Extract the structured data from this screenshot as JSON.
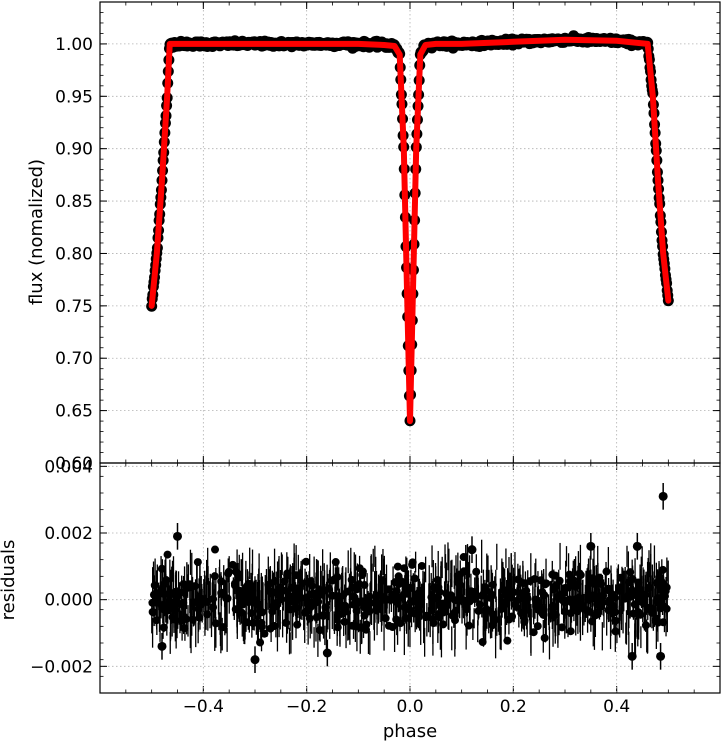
{
  "chart_data": [
    {
      "type": "scatter",
      "panel": "top",
      "title": "",
      "xlabel": "",
      "ylabel": "flux  (nomalized)",
      "xlim": [
        -0.6,
        0.6
      ],
      "ylim": [
        0.6,
        1.04
      ],
      "x_ticks": [
        -0.4,
        -0.2,
        0.0,
        0.2,
        0.4
      ],
      "y_ticks": [
        0.6,
        0.65,
        0.7,
        0.75,
        0.8,
        0.85,
        0.9,
        0.95,
        1.0
      ],
      "y_tick_labels": [
        "0.60",
        "0.65",
        "0.70",
        "0.75",
        "0.80",
        "0.85",
        "0.90",
        "0.95",
        "1.00"
      ],
      "grid": true,
      "series": [
        {
          "role": "observed",
          "marker": "circle",
          "color": "#000000",
          "x": [
            -0.5,
            -0.49,
            -0.48,
            -0.47,
            -0.465,
            -0.45,
            -0.4,
            -0.3,
            -0.2,
            -0.1,
            -0.05,
            -0.03,
            -0.02,
            -0.012,
            -0.006,
            0.0,
            0.006,
            0.012,
            0.02,
            0.03,
            0.05,
            0.1,
            0.2,
            0.3,
            0.4,
            0.46,
            0.47,
            0.48,
            0.49,
            0.5
          ],
          "y": [
            0.75,
            0.8,
            0.87,
            0.95,
            1.0,
            1.0,
            1.0,
            1.0,
            1.0,
            1.0,
            0.999,
            0.998,
            0.99,
            0.9,
            0.77,
            0.64,
            0.77,
            0.9,
            0.99,
            0.999,
            1.0,
            1.0,
            1.002,
            1.004,
            1.003,
            1.0,
            0.95,
            0.87,
            0.8,
            0.755
          ]
        },
        {
          "role": "model",
          "marker": "line",
          "color": "#ff0000",
          "x": [
            -0.5,
            -0.49,
            -0.48,
            -0.47,
            -0.465,
            -0.45,
            -0.4,
            -0.3,
            -0.2,
            -0.1,
            -0.05,
            -0.03,
            -0.02,
            -0.012,
            -0.006,
            0.0,
            0.006,
            0.012,
            0.02,
            0.03,
            0.05,
            0.1,
            0.2,
            0.3,
            0.4,
            0.46,
            0.47,
            0.48,
            0.49,
            0.5
          ],
          "y": [
            0.75,
            0.8,
            0.87,
            0.95,
            1.0,
            1.0,
            1.0,
            1.0,
            1.0,
            1.0,
            0.999,
            0.998,
            0.99,
            0.9,
            0.77,
            0.64,
            0.77,
            0.9,
            0.99,
            0.999,
            1.0,
            1.0,
            1.002,
            1.004,
            1.003,
            1.0,
            0.95,
            0.87,
            0.8,
            0.755
          ]
        }
      ]
    },
    {
      "type": "scatter",
      "panel": "bottom",
      "title": "",
      "xlabel": "phase",
      "ylabel": "residuals",
      "xlim": [
        -0.6,
        0.6
      ],
      "ylim": [
        -0.0028,
        0.0041
      ],
      "x_ticks": [
        -0.4,
        -0.2,
        0.0,
        0.2,
        0.4
      ],
      "x_tick_labels": [
        "−0.4",
        "−0.2",
        "0.0",
        "0.2",
        "0.4"
      ],
      "y_ticks": [
        -0.002,
        0.0,
        0.002,
        0.004
      ],
      "y_tick_labels": [
        "−0.002",
        "0.000",
        "0.002",
        "0.004"
      ],
      "grid": true,
      "series": [
        {
          "role": "residuals",
          "marker": "circle-with-errorbars",
          "color": "#000000",
          "x_range": [
            -0.5,
            0.5
          ],
          "typical_spread": 0.0013,
          "typical_error": 0.0004,
          "outliers": [
            {
              "x": -0.45,
              "y": 0.0019
            },
            {
              "x": -0.3,
              "y": -0.0018
            },
            {
              "x": -0.16,
              "y": -0.0016
            },
            {
              "x": 0.12,
              "y": 0.0015
            },
            {
              "x": 0.35,
              "y": 0.0016
            },
            {
              "x": 0.44,
              "y": 0.0016
            },
            {
              "x": 0.49,
              "y": 0.0031
            },
            {
              "x": 0.485,
              "y": -0.0017
            },
            {
              "x": 0.43,
              "y": -0.0017
            },
            {
              "x": -0.48,
              "y": -0.0014
            }
          ]
        }
      ]
    }
  ]
}
